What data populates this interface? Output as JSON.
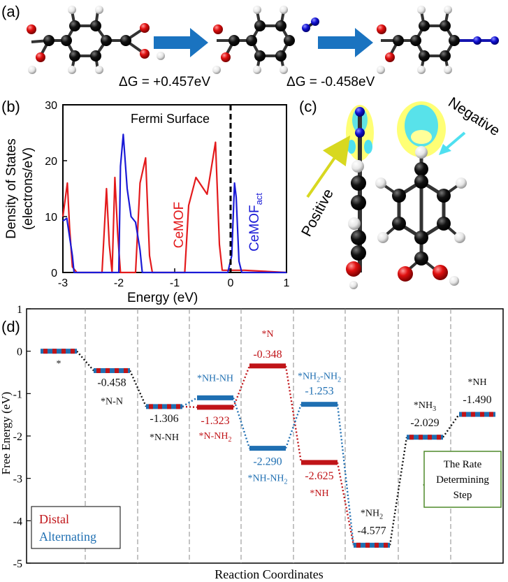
{
  "panel_a": {
    "label": "(a)",
    "dg1": "ΔG = +0.457eV",
    "dg2": "ΔG = -0.458eV"
  },
  "panel_c": {
    "label": "(c)",
    "positive": "Positive",
    "negative": "Negative"
  },
  "colors": {
    "distal": "#c01418",
    "alternating": "#1f6fb2",
    "dos_red": "#e31a1c",
    "dos_blue": "#1a1ad6",
    "arrow_blue": "#1a73c0",
    "green": "#4f8a2a",
    "yellow": "#ffff66",
    "cyan": "#4fe0f0"
  },
  "chart_data": [
    {
      "type": "line",
      "panel_label": "(b)",
      "title": "",
      "xlabel": "Energy (eV)",
      "ylabel_line1": "Density of States",
      "ylabel_line2": "(electrons/eV)",
      "xlim": [
        -3,
        1
      ],
      "ylim": [
        0,
        30
      ],
      "xticks": [
        -3,
        -2,
        -1,
        0,
        1
      ],
      "yticks": [
        0,
        10,
        20,
        30
      ],
      "annotation": "Fermi Surface",
      "fermi_level": 0,
      "series": [
        {
          "name": "CeMOF",
          "name_sub": "",
          "color": "#e31a1c",
          "points": [
            [
              -3.0,
              10
            ],
            [
              -2.92,
              16
            ],
            [
              -2.88,
              8
            ],
            [
              -2.83,
              1
            ],
            [
              -2.75,
              0
            ],
            [
              -2.3,
              0
            ],
            [
              -2.22,
              15
            ],
            [
              -2.17,
              5
            ],
            [
              -2.12,
              0
            ],
            [
              -2.07,
              17
            ],
            [
              -2.02,
              7
            ],
            [
              -1.97,
              0
            ],
            [
              -1.7,
              0
            ],
            [
              -1.62,
              16
            ],
            [
              -1.52,
              20.5
            ],
            [
              -1.45,
              3
            ],
            [
              -1.4,
              0
            ],
            [
              -0.82,
              0
            ],
            [
              -0.75,
              12
            ],
            [
              -0.62,
              17
            ],
            [
              -0.42,
              14
            ],
            [
              -0.27,
              23.3
            ],
            [
              -0.2,
              5
            ],
            [
              -0.15,
              0.4
            ],
            [
              0.25,
              0.4
            ],
            [
              1.0,
              0
            ]
          ]
        },
        {
          "name": "CeMOF",
          "name_sub": "act",
          "color": "#1a1ad6",
          "points": [
            [
              -3.0,
              9.2
            ],
            [
              -2.93,
              9.7
            ],
            [
              -2.83,
              3
            ],
            [
              -2.8,
              0
            ],
            [
              -2.0,
              0
            ],
            [
              -1.97,
              19
            ],
            [
              -1.92,
              24.7
            ],
            [
              -1.85,
              15
            ],
            [
              -1.78,
              10
            ],
            [
              -1.7,
              9
            ],
            [
              -1.62,
              4
            ],
            [
              -1.58,
              0
            ],
            [
              -0.05,
              0
            ],
            [
              0.02,
              3
            ],
            [
              0.07,
              16
            ],
            [
              0.1,
              13.5
            ],
            [
              0.15,
              2
            ],
            [
              0.2,
              0
            ],
            [
              1.0,
              0
            ]
          ]
        }
      ]
    },
    {
      "type": "line",
      "panel_label": "(d)",
      "title": "",
      "xlabel": "Reaction Coordinates",
      "ylabel": "Free Energy (eV)",
      "ylim": [
        -5,
        1
      ],
      "yticks": [
        1,
        0,
        -1,
        -2,
        -3,
        -4,
        -5
      ],
      "legend": {
        "distal": "Distal",
        "alternating": "Alternating"
      },
      "rds_label": "The Rate Determining Step",
      "rds_lines": [
        "The Rate",
        "Determining",
        "Step"
      ],
      "levels": [
        {
          "step": 0,
          "value": 0.0,
          "pathway": "both",
          "value_text": "",
          "label": "*"
        },
        {
          "step": 1,
          "value": -0.458,
          "pathway": "both",
          "value_text": "-0.458",
          "label": "*N-N"
        },
        {
          "step": 2,
          "value": -1.306,
          "pathway": "both",
          "value_text": "-1.306",
          "label": "*N-NH"
        },
        {
          "step": 3,
          "value": -1.323,
          "pathway": "distal",
          "value_text": "-1.323",
          "label": "*N-NH",
          "label_sub": "2"
        },
        {
          "step": 3,
          "value": -1.1,
          "pathway": "alternating",
          "value_text": "",
          "label": "*NH-NH"
        },
        {
          "step": 4,
          "value": -0.348,
          "pathway": "distal",
          "value_text": "-0.348",
          "label": "*N"
        },
        {
          "step": 4,
          "value": -2.29,
          "pathway": "alternating",
          "value_text": "-2.290",
          "label": "*NH-NH",
          "label_sub": "2"
        },
        {
          "step": 5,
          "value": -1.253,
          "pathway": "alternating",
          "value_text": "-1.253",
          "label": "*NH",
          "label_sub": "2",
          "label_suffix": "-NH",
          "label_sub2": "2"
        },
        {
          "step": 5,
          "value": -2.625,
          "pathway": "distal",
          "value_text": "-2.625",
          "label": "*NH"
        },
        {
          "step": 6,
          "value": -4.577,
          "pathway": "both",
          "value_text": "-4.577",
          "label": "*NH",
          "label_sub": "2"
        },
        {
          "step": 7,
          "value": -2.029,
          "pathway": "both",
          "value_text": "-2.029",
          "label": "*NH",
          "label_sub": "3"
        },
        {
          "step": 8,
          "value": -1.49,
          "pathway": "both",
          "value_text": "-1.490",
          "label": "*NH"
        }
      ]
    }
  ]
}
